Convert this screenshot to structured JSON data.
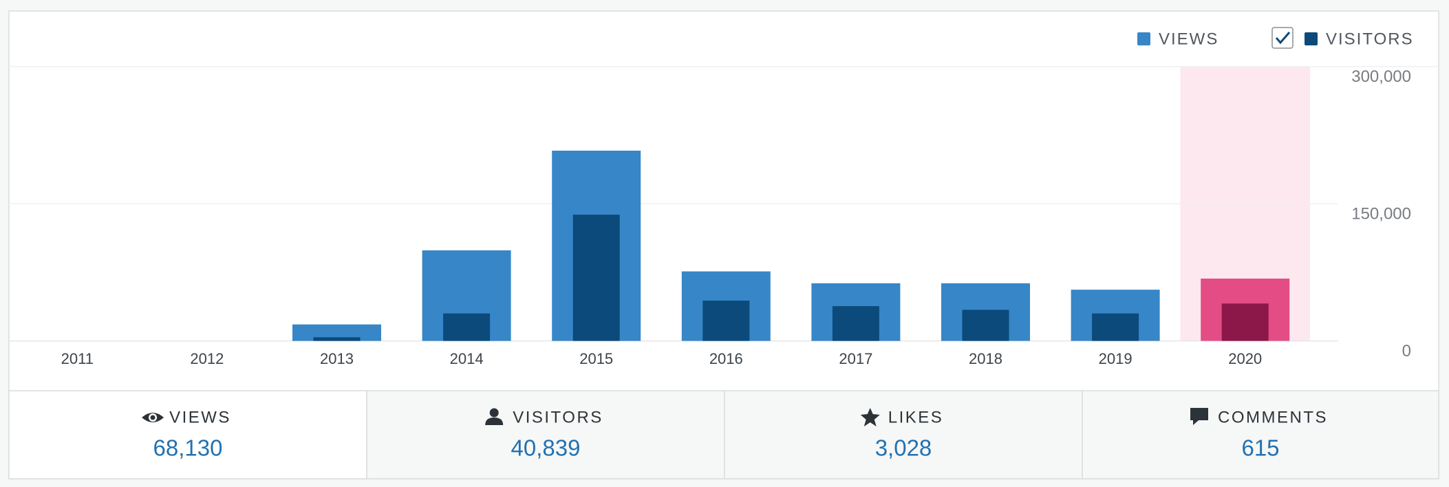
{
  "chart_data": {
    "type": "bar",
    "categories": [
      "2011",
      "2012",
      "2013",
      "2014",
      "2015",
      "2016",
      "2017",
      "2018",
      "2019",
      "2020"
    ],
    "series": [
      {
        "name": "VIEWS",
        "color": "#3786c8",
        "values": [
          0,
          0,
          18000,
          99000,
          208000,
          76000,
          63000,
          63000,
          56000,
          68130
        ]
      },
      {
        "name": "VISITORS",
        "color": "#0b4a7a",
        "values": [
          0,
          0,
          4000,
          30000,
          138000,
          44000,
          38000,
          34000,
          30000,
          40839
        ]
      }
    ],
    "ylim": [
      0,
      300000
    ],
    "yticks": [
      0,
      {
        "value": 150000,
        "label": "150,000"
      },
      {
        "value": 300000,
        "label": "300,000"
      }
    ],
    "grid": true,
    "legend": "top-right",
    "highlight": "2020",
    "highlight_colors": [
      "#e34c84",
      "#8c1749"
    ],
    "highlight_band": "#fce8ee"
  },
  "summary": [
    {
      "label": "VIEWS",
      "value": "68,130"
    },
    {
      "label": "VISITORS",
      "value": "40,839"
    },
    {
      "label": "LIKES",
      "value": "3,028"
    },
    {
      "label": "COMMENTS",
      "value": "615"
    }
  ]
}
